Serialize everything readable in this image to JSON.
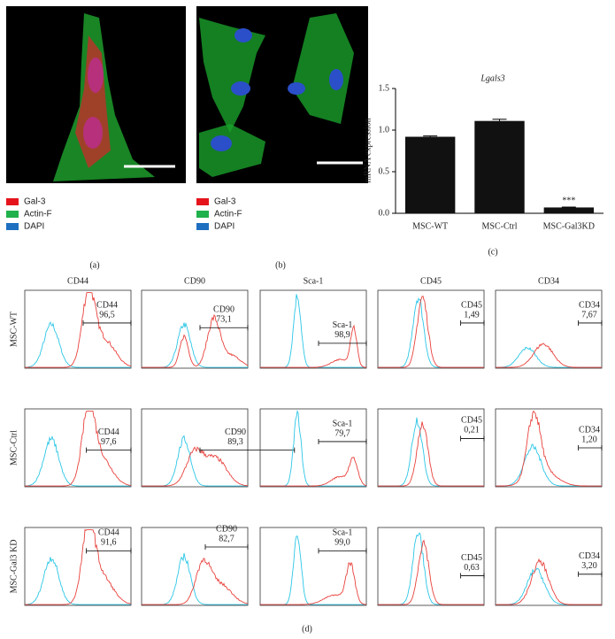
{
  "panel_a": {
    "label": "(a)",
    "legend": [
      {
        "name": "Gal-3",
        "color": "#e5141c"
      },
      {
        "name": "Actin-F",
        "color": "#1fb14b"
      },
      {
        "name": "DAPI",
        "color": "#1f6fc0"
      }
    ]
  },
  "panel_b": {
    "label": "(b)",
    "legend": [
      {
        "name": "Gal-3",
        "color": "#e5141c"
      },
      {
        "name": "Actin-F",
        "color": "#1fb14b"
      },
      {
        "name": "DAPI",
        "color": "#1f6fc0"
      }
    ]
  },
  "chart_data": {
    "type": "bar",
    "label": "(c)",
    "title": "Lgals3",
    "y_label": "mRNA expression",
    "categories": [
      "MSC-WT",
      "MSC-Ctrl",
      "MSC-Gal3KD"
    ],
    "values": [
      0.92,
      1.11,
      0.07
    ],
    "errors": [
      0.01,
      0.02,
      0.005
    ],
    "color": "#111111",
    "annotation": "***",
    "ylim": [
      0,
      1.5
    ],
    "yticks": [
      {
        "value": 0,
        "label": "0.0"
      },
      0.5,
      {
        "value": 1,
        "label": "1.0"
      },
      1.5
    ]
  },
  "panel_d": {
    "label": "(d)",
    "columns": [
      "CD44",
      "CD90",
      "Sca-1",
      "CD45",
      "CD34"
    ],
    "rows": [
      {
        "label": "MSC-WT",
        "gates": [
          {
            "name": "CD44",
            "value": "96,5"
          },
          {
            "name": "CD90",
            "value": "73,1"
          },
          {
            "name": "Sca-1",
            "value": "98,9"
          },
          {
            "name": "CD45",
            "value": "1,49"
          },
          {
            "name": "CD34",
            "value": "7,67"
          }
        ]
      },
      {
        "label": "MSC-Ctrl",
        "gates": [
          {
            "name": "CD44",
            "value": "97,6"
          },
          {
            "name": "CD90",
            "value": "89,3"
          },
          {
            "name": "Sca-1",
            "value": "79,7"
          },
          {
            "name": "CD45",
            "value": "0,21"
          },
          {
            "name": "CD34",
            "value": "1,20"
          }
        ]
      },
      {
        "label": "MSC-Gal3 KD",
        "gates": [
          {
            "name": "CD44",
            "value": "91,6"
          },
          {
            "name": "CD90",
            "value": "82,7"
          },
          {
            "name": "Sca-1",
            "value": "99,0"
          },
          {
            "name": "CD45",
            "value": "0,63"
          },
          {
            "name": "CD34",
            "value": "3,20"
          }
        ]
      }
    ]
  }
}
